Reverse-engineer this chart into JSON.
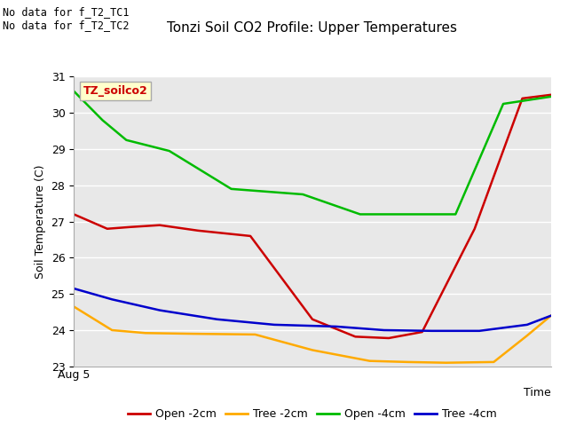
{
  "title": "Tonzi Soil CO2 Profile: Upper Temperatures",
  "ylabel": "Soil Temperature (C)",
  "xlabel": "Time",
  "ylim": [
    23.0,
    31.0
  ],
  "yticks": [
    23.0,
    24.0,
    25.0,
    26.0,
    27.0,
    28.0,
    29.0,
    30.0,
    31.0
  ],
  "x_tick_label": "Aug 5",
  "background_color": "#e8e8e8",
  "no_data_text1": "No data for f_T2_TC1",
  "no_data_text2": "No data for f_T2_TC2",
  "legend_box_text": "TZ_soilco2",
  "legend_box_color": "#ffffcc",
  "legend_box_border": "#aaaaaa",
  "series": {
    "open_2cm": {
      "color": "#cc0000",
      "label": "Open -2cm",
      "x": [
        0.0,
        0.07,
        0.12,
        0.18,
        0.26,
        0.37,
        0.5,
        0.59,
        0.66,
        0.73,
        0.84,
        0.94,
        1.0
      ],
      "y": [
        27.2,
        26.8,
        26.85,
        26.9,
        26.75,
        26.6,
        24.3,
        23.82,
        23.78,
        23.95,
        26.8,
        30.4,
        30.5
      ]
    },
    "tree_2cm": {
      "color": "#ffaa00",
      "label": "Tree -2cm",
      "x": [
        0.0,
        0.08,
        0.15,
        0.25,
        0.38,
        0.5,
        0.62,
        0.7,
        0.78,
        0.88,
        0.95,
        1.0
      ],
      "y": [
        24.65,
        24.0,
        23.92,
        23.9,
        23.88,
        23.45,
        23.15,
        23.12,
        23.1,
        23.12,
        23.85,
        24.4
      ]
    },
    "open_4cm": {
      "color": "#00bb00",
      "label": "Open -4cm",
      "x": [
        0.0,
        0.06,
        0.11,
        0.2,
        0.33,
        0.48,
        0.6,
        0.7,
        0.8,
        0.9,
        1.0
      ],
      "y": [
        30.6,
        29.8,
        29.25,
        28.95,
        27.9,
        27.75,
        27.2,
        27.2,
        27.2,
        30.25,
        30.45
      ]
    },
    "tree_4cm": {
      "color": "#0000cc",
      "label": "Tree -4cm",
      "x": [
        0.0,
        0.08,
        0.18,
        0.3,
        0.42,
        0.55,
        0.65,
        0.75,
        0.85,
        0.95,
        1.0
      ],
      "y": [
        25.15,
        24.85,
        24.55,
        24.3,
        24.15,
        24.1,
        24.0,
        23.98,
        23.98,
        24.15,
        24.4
      ]
    }
  }
}
